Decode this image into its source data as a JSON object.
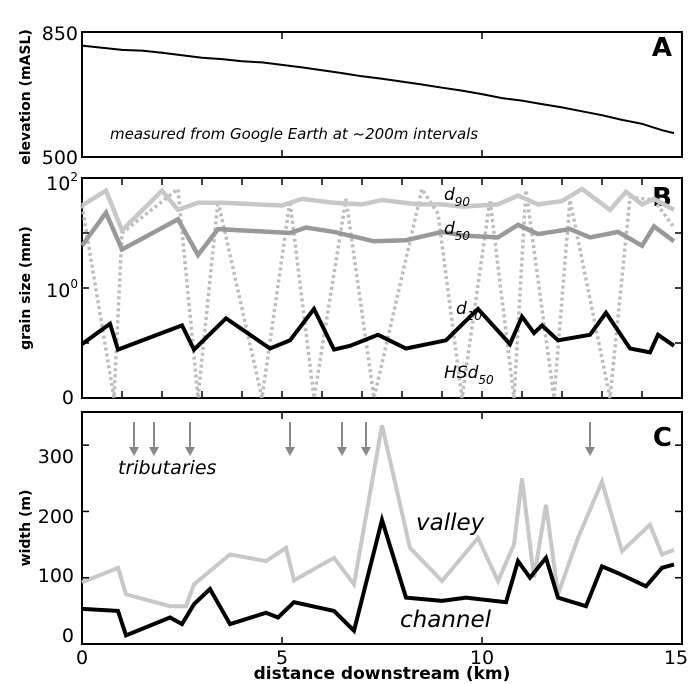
{
  "colors": {
    "black": "#000000",
    "light_gray": "#c8c8c8",
    "mid_gray": "#999999",
    "dotted_gray": "#bdbdbd",
    "arrow_gray": "#8a8a8a"
  },
  "chart_data": [
    {
      "type": "line",
      "panel_letter": "A",
      "ylabel": "elevation (mASL)",
      "ylim": [
        500,
        850
      ],
      "yticks": [
        "850",
        "500"
      ],
      "xlim": [
        0,
        15
      ],
      "annotation": "measured from Google Earth at ~200m intervals",
      "series": [
        {
          "x": [
            0,
            0.5,
            1,
            1.5,
            2,
            2.5,
            3,
            3.5,
            4,
            4.5,
            5,
            5.5,
            6,
            6.5,
            7,
            7.5,
            8,
            8.5,
            9,
            9.5,
            10,
            10.5,
            11,
            11.5,
            12,
            12.5,
            13,
            13.5,
            14,
            14.5,
            14.8
          ],
          "y": [
            812,
            806,
            800,
            798,
            792,
            785,
            778,
            774,
            768,
            765,
            758,
            751,
            743,
            735,
            726,
            719,
            711,
            703,
            694,
            686,
            676,
            665,
            658,
            648,
            639,
            628,
            617,
            604,
            593,
            575,
            567
          ]
        }
      ]
    },
    {
      "type": "line",
      "panel_letter": "B",
      "ylabel": "grain size (mm)",
      "yticks": [
        {
          "base": "10",
          "exp": "2",
          "value": 2
        },
        {
          "base": "10",
          "exp": "0",
          "value": 0
        },
        {
          "base": "0",
          "exp": "",
          "value": -2
        }
      ],
      "ylim": [
        -2,
        2
      ],
      "xlim": [
        0,
        15
      ],
      "series": [
        {
          "name": "d90",
          "base": "d",
          "sub": "90",
          "style": "solid",
          "color": "light_gray",
          "x": [
            0,
            0.6,
            1,
            2,
            2.4,
            2.9,
            3.5,
            5,
            5.5,
            6.3,
            7,
            7.5,
            8.4,
            9,
            9.5,
            10.4,
            10.9,
            11.4,
            12,
            12.5,
            13.2,
            13.6,
            14,
            14.3,
            14.8
          ],
          "y": [
            1.5,
            1.77,
            1.05,
            1.77,
            1.42,
            1.55,
            1.55,
            1.5,
            1.62,
            1.55,
            1.52,
            1.6,
            1.52,
            1.52,
            1.48,
            1.52,
            1.68,
            1.52,
            1.58,
            1.8,
            1.42,
            1.75,
            1.52,
            1.62,
            1.42
          ]
        },
        {
          "name": "d50",
          "base": "d",
          "sub": "50",
          "style": "solid",
          "color": "mid_gray",
          "x": [
            0,
            0.6,
            1,
            2.4,
            2.9,
            3.4,
            5.2,
            5.6,
            6.3,
            7.3,
            8.1,
            9,
            9.6,
            10.4,
            10.9,
            11.4,
            12.2,
            12.7,
            13.4,
            14,
            14.3,
            14.8
          ],
          "y": [
            0.77,
            1.37,
            0.7,
            1.25,
            0.6,
            1.07,
            1.0,
            1.1,
            1.02,
            0.85,
            0.87,
            1.02,
            0.95,
            0.92,
            1.15,
            0.98,
            1.07,
            0.92,
            1.02,
            0.77,
            1.12,
            0.85
          ]
        },
        {
          "name": "d10",
          "base": "d",
          "sub": "10",
          "style": "solid",
          "color": "black",
          "x": [
            0,
            0.7,
            0.9,
            2.5,
            2.8,
            3.6,
            4.7,
            5.2,
            5.8,
            6.3,
            6.7,
            7.4,
            8.1,
            9.1,
            9.9,
            10.7,
            11,
            11.3,
            11.5,
            11.9,
            12.7,
            13.1,
            13.7,
            14.2,
            14.4,
            14.8
          ],
          "y": [
            -1.02,
            -0.65,
            -1.12,
            -0.68,
            -1.12,
            -0.55,
            -1.1,
            -0.95,
            -0.38,
            -1.12,
            -1.05,
            -0.85,
            -1.1,
            -0.95,
            -0.38,
            -1.02,
            -0.52,
            -0.82,
            -0.68,
            -0.95,
            -0.85,
            -0.45,
            -1.1,
            -1.17,
            -0.85,
            -1.05
          ]
        },
        {
          "name": "HSd50",
          "base": "HSd",
          "sub": "50",
          "style": "dotted",
          "color": "dotted_gray",
          "x": [
            0,
            0.8,
            1,
            2.4,
            2.9,
            3.4,
            4.5,
            5.2,
            5.8,
            6.6,
            7.3,
            8.5,
            8.9,
            9.5,
            10.2,
            10.8,
            11.1,
            11.8,
            12.2,
            13.2,
            13.7,
            14.3,
            14.8
          ],
          "y": [
            1.5,
            -2,
            1.0,
            1.8,
            -2,
            1.58,
            -2,
            1.58,
            -2,
            1.62,
            -2,
            1.8,
            1.35,
            -2,
            1.6,
            -2,
            1.78,
            -2,
            1.6,
            -2,
            1.65,
            1.6,
            1.1
          ]
        }
      ]
    },
    {
      "type": "line",
      "panel_letter": "C",
      "ylabel": "width (m)",
      "xlabel": "distance downstream (km)",
      "ylim": [
        0,
        350
      ],
      "yticks": [
        0,
        100,
        200,
        300
      ],
      "xlim": [
        0,
        15
      ],
      "xticks": [
        0,
        5,
        10,
        15
      ],
      "tributaries_label": "tributaries",
      "tributaries_x": [
        1.3,
        1.8,
        2.7,
        5.2,
        6.5,
        7.1,
        12.7
      ],
      "series": [
        {
          "name": "valley",
          "label": "valley",
          "color": "light_gray",
          "x": [
            0,
            0.9,
            1.1,
            2.2,
            2.6,
            2.8,
            3.7,
            4.6,
            5.1,
            5.3,
            6.3,
            6.8,
            7.5,
            8.2,
            9,
            9.9,
            10.4,
            10.8,
            11,
            11.3,
            11.6,
            11.9,
            12.4,
            13,
            13.5,
            14.2,
            14.5,
            14.8
          ],
          "y": [
            93,
            115,
            75,
            57,
            57,
            90,
            135,
            125,
            145,
            96,
            130,
            90,
            330,
            145,
            95,
            160,
            95,
            150,
            250,
            100,
            210,
            75,
            160,
            245,
            140,
            180,
            135,
            142
          ]
        },
        {
          "name": "channel",
          "label": "channel",
          "color": "black",
          "x": [
            0,
            0.9,
            1.1,
            2.2,
            2.5,
            2.8,
            3.2,
            3.7,
            4.6,
            4.9,
            5.3,
            6.3,
            6.8,
            7.5,
            8.1,
            9,
            9.6,
            10.6,
            10.9,
            11.2,
            11.6,
            11.9,
            12.6,
            13,
            13.4,
            14.1,
            14.5,
            14.8
          ],
          "y": [
            53,
            50,
            13,
            40,
            30,
            60,
            83,
            30,
            47,
            40,
            63,
            50,
            20,
            187,
            70,
            65,
            70,
            63,
            125,
            100,
            130,
            70,
            57,
            117,
            107,
            87,
            115,
            120
          ]
        }
      ]
    }
  ]
}
